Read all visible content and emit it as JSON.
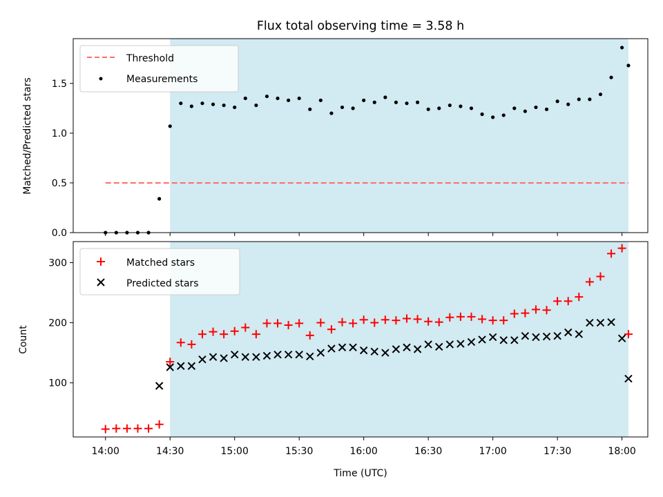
{
  "chart_data": [
    {
      "type": "scatter",
      "title": "Flux total observing time = 3.58 h",
      "ylabel": "Matched/Predicted stars",
      "xlabel": "",
      "ylim": [
        0,
        1.95
      ],
      "y_ticks": [
        "0.0",
        "0.5",
        "1.0",
        "1.5"
      ],
      "highlight_span": {
        "from": "14:30",
        "to": "18:03",
        "color": "#add8e6"
      },
      "legend": {
        "placement": "top-left",
        "entries": [
          "Threshold",
          "Measurements"
        ]
      },
      "threshold": {
        "name": "Threshold",
        "value": 0.5,
        "from": "14:00",
        "to": "18:03",
        "color": "#ff6b6b",
        "style": "dashed"
      },
      "series": [
        {
          "name": "Measurements",
          "marker": "dot",
          "color": "#000000",
          "x": [
            "14:00",
            "14:05",
            "14:10",
            "14:15",
            "14:20",
            "14:25",
            "14:30",
            "14:35",
            "14:40",
            "14:45",
            "14:50",
            "14:55",
            "15:00",
            "15:05",
            "15:10",
            "15:15",
            "15:20",
            "15:25",
            "15:30",
            "15:35",
            "15:40",
            "15:45",
            "15:50",
            "15:55",
            "16:00",
            "16:05",
            "16:10",
            "16:15",
            "16:20",
            "16:25",
            "16:30",
            "16:35",
            "16:40",
            "16:45",
            "16:50",
            "16:55",
            "17:00",
            "17:05",
            "17:10",
            "17:15",
            "17:20",
            "17:25",
            "17:30",
            "17:35",
            "17:40",
            "17:45",
            "17:50",
            "17:55",
            "18:00",
            "18:03"
          ],
          "values": [
            0.0,
            0.0,
            0.0,
            0.0,
            0.0,
            0.34,
            1.07,
            1.3,
            1.27,
            1.3,
            1.29,
            1.28,
            1.26,
            1.35,
            1.28,
            1.37,
            1.35,
            1.33,
            1.35,
            1.24,
            1.33,
            1.2,
            1.26,
            1.25,
            1.33,
            1.31,
            1.36,
            1.31,
            1.3,
            1.31,
            1.24,
            1.25,
            1.28,
            1.27,
            1.25,
            1.19,
            1.16,
            1.18,
            1.25,
            1.22,
            1.26,
            1.24,
            1.32,
            1.29,
            1.34,
            1.34,
            1.39,
            1.56,
            1.86,
            1.68
          ]
        }
      ]
    },
    {
      "type": "scatter",
      "title": "",
      "ylabel": "Count",
      "xlabel": "Time (UTC)",
      "ylim": [
        10,
        335
      ],
      "y_ticks": [
        "100",
        "200",
        "300"
      ],
      "x_ticks": [
        "14:00",
        "14:30",
        "15:00",
        "15:30",
        "16:00",
        "16:30",
        "17:00",
        "17:30",
        "18:00"
      ],
      "highlight_span": {
        "from": "14:30",
        "to": "18:03",
        "color": "#add8e6"
      },
      "legend": {
        "placement": "top-left",
        "entries": [
          "Matched stars",
          "Predicted stars"
        ]
      },
      "series": [
        {
          "name": "Matched stars",
          "marker": "plus",
          "color": "#ff0000",
          "x": [
            "14:00",
            "14:05",
            "14:10",
            "14:15",
            "14:20",
            "14:25",
            "14:30",
            "14:35",
            "14:40",
            "14:45",
            "14:50",
            "14:55",
            "15:00",
            "15:05",
            "15:10",
            "15:15",
            "15:20",
            "15:25",
            "15:30",
            "15:35",
            "15:40",
            "15:45",
            "15:50",
            "15:55",
            "16:00",
            "16:05",
            "16:10",
            "16:15",
            "16:20",
            "16:25",
            "16:30",
            "16:35",
            "16:40",
            "16:45",
            "16:50",
            "16:55",
            "17:00",
            "17:05",
            "17:10",
            "17:15",
            "17:20",
            "17:25",
            "17:30",
            "17:35",
            "17:40",
            "17:45",
            "17:50",
            "17:55",
            "18:00",
            "18:03"
          ],
          "values": [
            23,
            24,
            24,
            24,
            24,
            31,
            135,
            167,
            164,
            181,
            185,
            181,
            186,
            192,
            181,
            199,
            199,
            196,
            199,
            179,
            200,
            189,
            201,
            199,
            205,
            200,
            205,
            204,
            207,
            206,
            202,
            201,
            209,
            210,
            210,
            206,
            204,
            204,
            215,
            216,
            222,
            221,
            236,
            236,
            243,
            268,
            277,
            315,
            324,
            181
          ]
        },
        {
          "name": "Predicted stars",
          "marker": "x",
          "color": "#000000",
          "x": [
            "14:25",
            "14:30",
            "14:35",
            "14:40",
            "14:45",
            "14:50",
            "14:55",
            "15:00",
            "15:05",
            "15:10",
            "15:15",
            "15:20",
            "15:25",
            "15:30",
            "15:35",
            "15:40",
            "15:45",
            "15:50",
            "15:55",
            "16:00",
            "16:05",
            "16:10",
            "16:15",
            "16:20",
            "16:25",
            "16:30",
            "16:35",
            "16:40",
            "16:45",
            "16:50",
            "16:55",
            "17:00",
            "17:05",
            "17:10",
            "17:15",
            "17:20",
            "17:25",
            "17:30",
            "17:35",
            "17:40",
            "17:45",
            "17:50",
            "17:55",
            "18:00",
            "18:03"
          ],
          "values": [
            95,
            126,
            128,
            128,
            139,
            143,
            141,
            147,
            143,
            143,
            145,
            147,
            147,
            147,
            144,
            150,
            157,
            159,
            159,
            154,
            152,
            150,
            156,
            159,
            156,
            164,
            160,
            164,
            165,
            168,
            172,
            176,
            171,
            171,
            178,
            176,
            177,
            178,
            184,
            181,
            200,
            200,
            201,
            174,
            107
          ]
        }
      ]
    }
  ]
}
